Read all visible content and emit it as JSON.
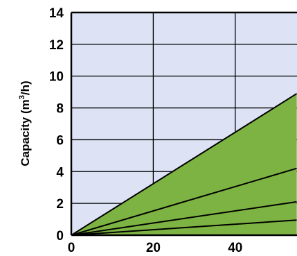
{
  "chart_data": {
    "type": "area",
    "title": "",
    "xlabel": "",
    "ylabel": "Capacity (m",
    "ylabel_superscript": "3",
    "ylabel_suffix": "/h)",
    "xlim": [
      0,
      55
    ],
    "ylim": [
      0,
      14
    ],
    "x_ticks": [
      "0",
      "20",
      "40"
    ],
    "y_ticks": [
      "0",
      "2",
      "4",
      "6",
      "8",
      "10",
      "12",
      "14"
    ],
    "grid": true,
    "colors": {
      "plot_background": "#dde3f4",
      "area_fill": "#7cb342",
      "lines": "#000000",
      "grid": "#000000"
    },
    "area": {
      "x": [
        0,
        55
      ],
      "lower": [
        0,
        0
      ],
      "upper": [
        0,
        8.9
      ]
    },
    "series": [
      {
        "x": [
          0,
          55
        ],
        "values": [
          0,
          8.9
        ]
      },
      {
        "x": [
          0,
          55
        ],
        "values": [
          0,
          4.2
        ]
      },
      {
        "x": [
          0,
          55
        ],
        "values": [
          0,
          2.1
        ]
      },
      {
        "x": [
          0,
          55
        ],
        "values": [
          0,
          0.95
        ]
      }
    ]
  }
}
